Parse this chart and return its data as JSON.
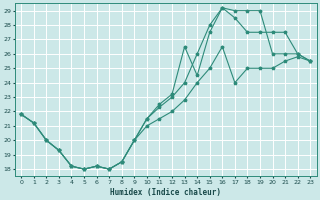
{
  "xlabel": "Humidex (Indice chaleur)",
  "bg_color": "#cce8e8",
  "grid_color": "#ffffff",
  "line_color": "#2e8b7a",
  "xlim": [
    -0.5,
    23.5
  ],
  "ylim": [
    17.5,
    29.5
  ],
  "yticks": [
    18,
    19,
    20,
    21,
    22,
    23,
    24,
    25,
    26,
    27,
    28,
    29
  ],
  "xticks": [
    0,
    1,
    2,
    3,
    4,
    5,
    6,
    7,
    8,
    9,
    10,
    11,
    12,
    13,
    14,
    15,
    16,
    17,
    18,
    19,
    20,
    21,
    22,
    23
  ],
  "curve1_x": [
    0,
    1,
    2,
    3,
    4,
    5,
    6,
    7,
    8,
    9,
    10,
    11,
    12,
    13,
    14,
    15,
    16,
    17,
    18,
    19,
    20,
    21,
    22,
    23
  ],
  "curve1_y": [
    21.8,
    21.2,
    20.0,
    19.3,
    18.2,
    18.0,
    18.2,
    18.0,
    18.5,
    20.0,
    21.0,
    21.5,
    22.0,
    22.8,
    24.0,
    25.0,
    26.5,
    24.0,
    25.0,
    25.0,
    25.0,
    25.5,
    25.8,
    25.5
  ],
  "curve2_x": [
    0,
    1,
    2,
    3,
    4,
    5,
    6,
    7,
    8,
    9,
    10,
    11,
    12,
    13,
    14,
    15,
    16,
    17,
    18,
    19,
    20,
    21,
    22,
    23
  ],
  "curve2_y": [
    21.8,
    21.2,
    20.0,
    19.3,
    18.2,
    18.0,
    18.2,
    18.0,
    18.5,
    20.0,
    21.5,
    22.3,
    23.0,
    24.0,
    26.0,
    28.0,
    29.2,
    29.0,
    29.0,
    29.0,
    26.0,
    26.0,
    26.0,
    25.5
  ],
  "curve3_x": [
    0,
    1,
    2,
    3,
    4,
    5,
    6,
    7,
    8,
    9,
    10,
    11,
    12,
    13,
    14,
    15,
    16,
    17,
    18,
    19,
    20,
    21,
    22,
    23
  ],
  "curve3_y": [
    21.8,
    21.2,
    20.0,
    19.3,
    18.2,
    18.0,
    18.2,
    18.0,
    18.5,
    20.0,
    21.5,
    22.5,
    23.2,
    26.5,
    24.5,
    27.5,
    29.2,
    28.5,
    27.5,
    27.5,
    27.5,
    27.5,
    26.0,
    25.5
  ]
}
